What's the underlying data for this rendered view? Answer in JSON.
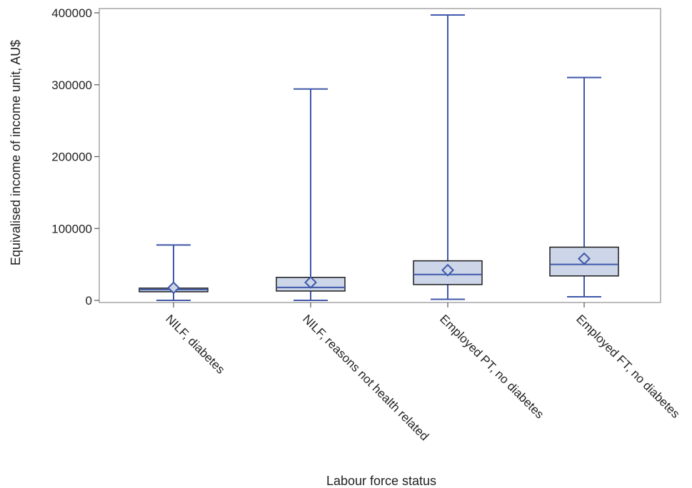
{
  "chart_data": {
    "type": "box",
    "title": "",
    "xlabel": "Labour force status",
    "ylabel": "Equivalised income of income unit, AU$",
    "ylim": [
      0,
      400000
    ],
    "yticks": [
      0,
      100000,
      200000,
      300000,
      400000
    ],
    "ytick_labels": [
      "0",
      "100000",
      "200000",
      "300000",
      "400000"
    ],
    "grid": false,
    "colors": {
      "line": "#3f57a8",
      "fill": "#ccd6e8",
      "frame": "#a6a6a6"
    },
    "categories": [
      "NILF, diabetes",
      "NILF, reasons not health related",
      "Employed PT, no diabetes",
      "Employed FT, no diabetes"
    ],
    "boxes": [
      {
        "min": 0,
        "q1": 12000,
        "median": 15000,
        "q3": 17000,
        "max": 77000,
        "mean": 17500
      },
      {
        "min": 0,
        "q1": 13000,
        "median": 18000,
        "q3": 32000,
        "max": 294000,
        "mean": 25000
      },
      {
        "min": 1500,
        "q1": 22000,
        "median": 36000,
        "q3": 55000,
        "max": 397000,
        "mean": 42000
      },
      {
        "min": 5000,
        "q1": 34000,
        "median": 50000,
        "q3": 74000,
        "max": 310000,
        "mean": 58000
      }
    ]
  }
}
